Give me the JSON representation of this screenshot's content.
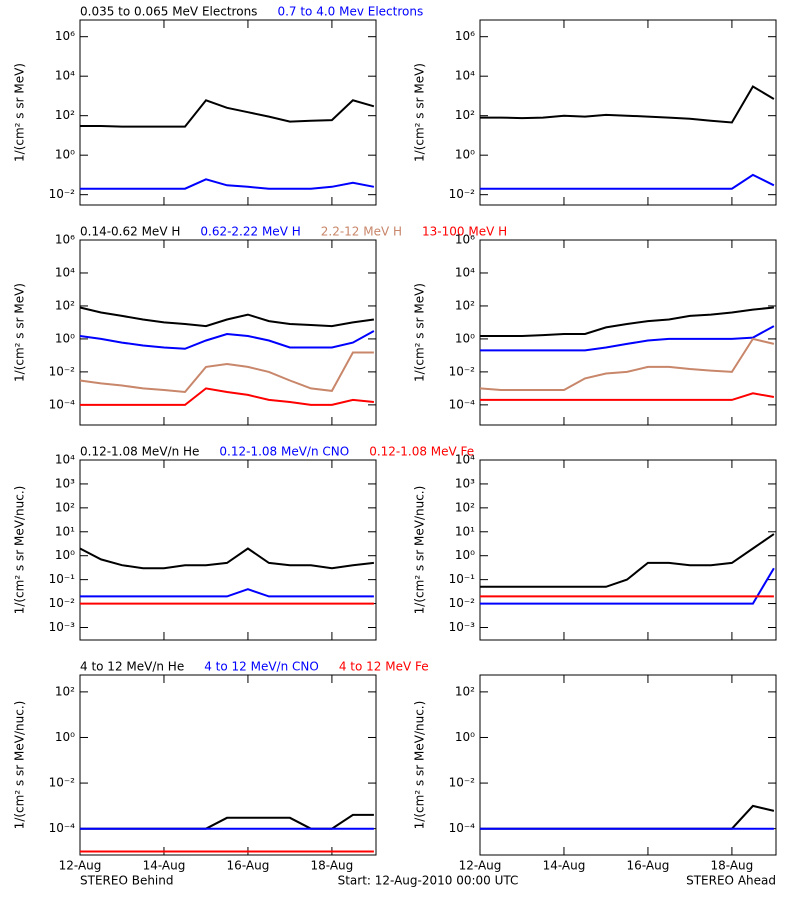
{
  "time_axis": {
    "x": [
      12,
      12.5,
      13,
      13.5,
      14,
      14.5,
      15,
      15.5,
      16,
      16.5,
      17,
      17.5,
      18,
      18.5,
      19
    ],
    "xlim": [
      12,
      19.05
    ],
    "xticks": [
      {
        "value": 12,
        "label": "12-Aug"
      },
      {
        "value": 14,
        "label": "14-Aug"
      },
      {
        "value": 16,
        "label": "16-Aug"
      },
      {
        "value": 18,
        "label": "18-Aug"
      }
    ]
  },
  "footer": {
    "left": "STEREO Behind",
    "center": "Start: 12-Aug-2010 00:00 UTC",
    "right": "STEREO Ahead"
  },
  "chart_data": [
    {
      "type": "line",
      "log_y": true,
      "ylabel": "1/(cm² s sr MeV)",
      "ylim": [
        0.003,
        7000000
      ],
      "yticks": [
        {
          "value": 0.01,
          "label": "10⁻²"
        },
        {
          "value": 1,
          "label": "10⁰"
        },
        {
          "value": 100,
          "label": "10²"
        },
        {
          "value": 10000,
          "label": "10⁴"
        },
        {
          "value": 1000000,
          "label": "10⁶"
        }
      ],
      "series": [
        {
          "name": "0.035 to 0.065 MeV Electrons",
          "color": "#000000",
          "values": [
            30,
            30,
            28,
            28,
            28,
            28,
            600,
            250,
            150,
            90,
            50,
            55,
            60,
            600,
            300
          ]
        },
        {
          "name": "0.7 to 4.0 Mev Electrons",
          "color": "#0000ff",
          "values": [
            0.02,
            0.02,
            0.02,
            0.02,
            0.02,
            0.02,
            0.06,
            0.03,
            0.025,
            0.02,
            0.02,
            0.02,
            0.025,
            0.04,
            0.025
          ]
        }
      ]
    },
    {
      "type": "line",
      "log_y": true,
      "ylabel": "1/(cm² s sr MeV)",
      "ylim": [
        0.003,
        7000000
      ],
      "yticks": [
        {
          "value": 0.01,
          "label": "10⁻²"
        },
        {
          "value": 1,
          "label": "10⁰"
        },
        {
          "value": 100,
          "label": "10²"
        },
        {
          "value": 10000,
          "label": "10⁴"
        },
        {
          "value": 1000000,
          "label": "10⁶"
        }
      ],
      "series": [
        {
          "color": "#000000",
          "values": [
            80,
            80,
            75,
            80,
            100,
            90,
            110,
            100,
            90,
            80,
            70,
            55,
            45,
            3000,
            700
          ]
        },
        {
          "color": "#0000ff",
          "values": [
            0.02,
            0.02,
            0.02,
            0.02,
            0.02,
            0.02,
            0.02,
            0.02,
            0.02,
            0.02,
            0.02,
            0.02,
            0.02,
            0.1,
            0.03
          ]
        }
      ]
    },
    {
      "type": "line",
      "log_y": true,
      "ylabel": "1/(cm² s sr MeV)",
      "ylim": [
        6e-06,
        1000000
      ],
      "yticks": [
        {
          "value": 0.0001,
          "label": "10⁻⁴"
        },
        {
          "value": 0.01,
          "label": "10⁻²"
        },
        {
          "value": 1,
          "label": "10⁰"
        },
        {
          "value": 100,
          "label": "10²"
        },
        {
          "value": 10000,
          "label": "10⁴"
        },
        {
          "value": 1000000,
          "label": "10⁶"
        }
      ],
      "series": [
        {
          "name": "0.14-0.62 MeV H",
          "color": "#000000",
          "values": [
            80,
            40,
            25,
            15,
            10,
            8,
            6,
            15,
            30,
            12,
            8,
            7,
            6,
            10,
            15
          ]
        },
        {
          "name": "0.62-2.22 MeV H",
          "color": "#0000ff",
          "values": [
            1.5,
            1,
            0.6,
            0.4,
            0.3,
            0.25,
            0.8,
            2,
            1.5,
            0.8,
            0.3,
            0.3,
            0.3,
            0.6,
            3
          ]
        },
        {
          "name": "2.2-12 MeV H",
          "color": "#c8866a",
          "values": [
            0.003,
            0.002,
            0.0015,
            0.001,
            0.0008,
            0.0006,
            0.02,
            0.03,
            0.02,
            0.01,
            0.003,
            0.001,
            0.0007,
            0.15,
            0.15
          ]
        },
        {
          "name": "13-100 MeV H",
          "color": "#ff0000",
          "values": [
            0.0001,
            0.0001,
            0.0001,
            0.0001,
            0.0001,
            0.0001,
            0.001,
            0.0006,
            0.0004,
            0.0002,
            0.00015,
            0.0001,
            0.0001,
            0.0002,
            0.00015
          ]
        }
      ]
    },
    {
      "type": "line",
      "log_y": true,
      "ylabel": "1/(cm² s sr MeV)",
      "ylim": [
        6e-06,
        1000000
      ],
      "yticks": [
        {
          "value": 0.0001,
          "label": "10⁻⁴"
        },
        {
          "value": 0.01,
          "label": "10⁻²"
        },
        {
          "value": 1,
          "label": "10⁰"
        },
        {
          "value": 100,
          "label": "10²"
        },
        {
          "value": 10000,
          "label": "10⁴"
        },
        {
          "value": 1000000,
          "label": "10⁶"
        }
      ],
      "series": [
        {
          "color": "#000000",
          "values": [
            1.5,
            1.5,
            1.5,
            1.7,
            2,
            2,
            5,
            8,
            12,
            15,
            25,
            30,
            40,
            60,
            80
          ]
        },
        {
          "color": "#0000ff",
          "values": [
            0.2,
            0.2,
            0.2,
            0.2,
            0.2,
            0.2,
            0.3,
            0.5,
            0.8,
            1,
            1,
            1,
            1,
            1.2,
            6
          ]
        },
        {
          "color": "#c8866a",
          "values": [
            0.001,
            0.0008,
            0.0008,
            0.0008,
            0.0008,
            0.004,
            0.008,
            0.01,
            0.02,
            0.02,
            0.015,
            0.012,
            0.01,
            1,
            0.5
          ]
        },
        {
          "color": "#ff0000",
          "values": [
            0.0002,
            0.0002,
            0.0002,
            0.0002,
            0.0002,
            0.0002,
            0.0002,
            0.0002,
            0.0002,
            0.0002,
            0.0002,
            0.0002,
            0.0002,
            0.0005,
            0.0003
          ]
        }
      ]
    },
    {
      "type": "line",
      "log_y": true,
      "ylabel": "1/(cm² s sr MeV/nuc.)",
      "ylim": [
        0.0003,
        10000
      ],
      "yticks": [
        {
          "value": 0.001,
          "label": "10⁻³"
        },
        {
          "value": 0.01,
          "label": "10⁻²"
        },
        {
          "value": 0.1,
          "label": "10⁻¹"
        },
        {
          "value": 1,
          "label": "10⁰"
        },
        {
          "value": 10,
          "label": "10¹"
        },
        {
          "value": 100,
          "label": "10²"
        },
        {
          "value": 1000,
          "label": "10³"
        },
        {
          "value": 10000,
          "label": "10⁴"
        }
      ],
      "series": [
        {
          "name": "0.12-1.08 MeV/n He",
          "color": "#000000",
          "values": [
            2,
            0.7,
            0.4,
            0.3,
            0.3,
            0.4,
            0.4,
            0.5,
            2,
            0.5,
            0.4,
            0.4,
            0.3,
            0.4,
            0.5
          ]
        },
        {
          "name": "0.12-1.08 MeV/n CNO",
          "color": "#0000ff",
          "values": [
            0.02,
            0.02,
            0.02,
            0.02,
            0.02,
            0.02,
            0.02,
            0.02,
            0.04,
            0.02,
            0.02,
            0.02,
            0.02,
            0.02,
            0.02
          ]
        },
        {
          "name": "0.12-1.08 MeV Fe",
          "color": "#ff0000",
          "values": [
            0.01,
            0.01,
            0.01,
            0.01,
            0.01,
            0.01,
            0.01,
            0.01,
            0.01,
            0.01,
            0.01,
            0.01,
            0.01,
            0.01,
            0.01
          ]
        }
      ]
    },
    {
      "type": "line",
      "log_y": true,
      "ylabel": "1/(cm² s sr MeV/nuc.)",
      "ylim": [
        0.0003,
        10000
      ],
      "yticks": [
        {
          "value": 0.001,
          "label": "10⁻³"
        },
        {
          "value": 0.01,
          "label": "10⁻²"
        },
        {
          "value": 0.1,
          "label": "10⁻¹"
        },
        {
          "value": 1,
          "label": "10⁰"
        },
        {
          "value": 10,
          "label": "10¹"
        },
        {
          "value": 100,
          "label": "10²"
        },
        {
          "value": 1000,
          "label": "10³"
        },
        {
          "value": 10000,
          "label": "10⁴"
        }
      ],
      "series": [
        {
          "color": "#000000",
          "values": [
            0.05,
            0.05,
            0.05,
            0.05,
            0.05,
            0.05,
            0.05,
            0.1,
            0.5,
            0.5,
            0.4,
            0.4,
            0.5,
            2,
            8
          ]
        },
        {
          "color": "#0000ff",
          "values": [
            0.01,
            0.01,
            0.01,
            0.01,
            0.01,
            0.01,
            0.01,
            0.01,
            0.01,
            0.01,
            0.01,
            0.01,
            0.01,
            0.01,
            0.3
          ]
        },
        {
          "color": "#ff0000",
          "values": [
            0.02,
            0.02,
            0.02,
            0.02,
            0.02,
            0.02,
            0.02,
            0.02,
            0.02,
            0.02,
            0.02,
            0.02,
            0.02,
            0.02,
            0.02
          ]
        }
      ]
    },
    {
      "type": "line",
      "log_y": true,
      "ylabel": "1/(cm² s sr MeV/nuc.)",
      "ylim": [
        7e-06,
        550
      ],
      "yticks": [
        {
          "value": 0.0001,
          "label": "10⁻⁴"
        },
        {
          "value": 0.01,
          "label": "10⁻²"
        },
        {
          "value": 1,
          "label": "10⁰"
        },
        {
          "value": 100,
          "label": "10²"
        }
      ],
      "series": [
        {
          "name": "4 to 12 MeV/n He",
          "color": "#000000",
          "values": [
            0.0001,
            0.0001,
            0.0001,
            0.0001,
            0.0001,
            0.0001,
            0.0001,
            0.0003,
            0.0003,
            0.0003,
            0.0003,
            0.0001,
            0.0001,
            0.0004,
            0.0004
          ]
        },
        {
          "name": "4 to 12 MeV/n CNO",
          "color": "#0000ff",
          "values": [
            0.0001,
            0.0001,
            0.0001,
            0.0001,
            0.0001,
            0.0001,
            0.0001,
            0.0001,
            0.0001,
            0.0001,
            0.0001,
            0.0001,
            0.0001,
            0.0001,
            0.0001
          ]
        },
        {
          "name": "4 to 12 MeV Fe",
          "color": "#ff0000",
          "values": [
            1e-05,
            1e-05,
            1e-05,
            1e-05,
            1e-05,
            1e-05,
            1e-05,
            1e-05,
            1e-05,
            1e-05,
            1e-05,
            1e-05,
            1e-05,
            1e-05,
            1e-05
          ]
        }
      ]
    },
    {
      "type": "line",
      "log_y": true,
      "ylabel": "1/(cm² s sr MeV/nuc.)",
      "ylim": [
        7e-06,
        550
      ],
      "yticks": [
        {
          "value": 0.0001,
          "label": "10⁻⁴"
        },
        {
          "value": 0.01,
          "label": "10⁻²"
        },
        {
          "value": 1,
          "label": "10⁰"
        },
        {
          "value": 100,
          "label": "10²"
        }
      ],
      "series": [
        {
          "color": "#000000",
          "values": [
            0.0001,
            0.0001,
            0.0001,
            0.0001,
            0.0001,
            0.0001,
            0.0001,
            0.0001,
            0.0001,
            0.0001,
            0.0001,
            0.0001,
            0.0001,
            0.001,
            0.0006
          ]
        },
        {
          "color": "#0000ff",
          "values": [
            0.0001,
            0.0001,
            0.0001,
            0.0001,
            0.0001,
            0.0001,
            0.0001,
            0.0001,
            0.0001,
            0.0001,
            0.0001,
            0.0001,
            0.0001,
            0.0001,
            0.0001
          ]
        }
      ]
    }
  ]
}
